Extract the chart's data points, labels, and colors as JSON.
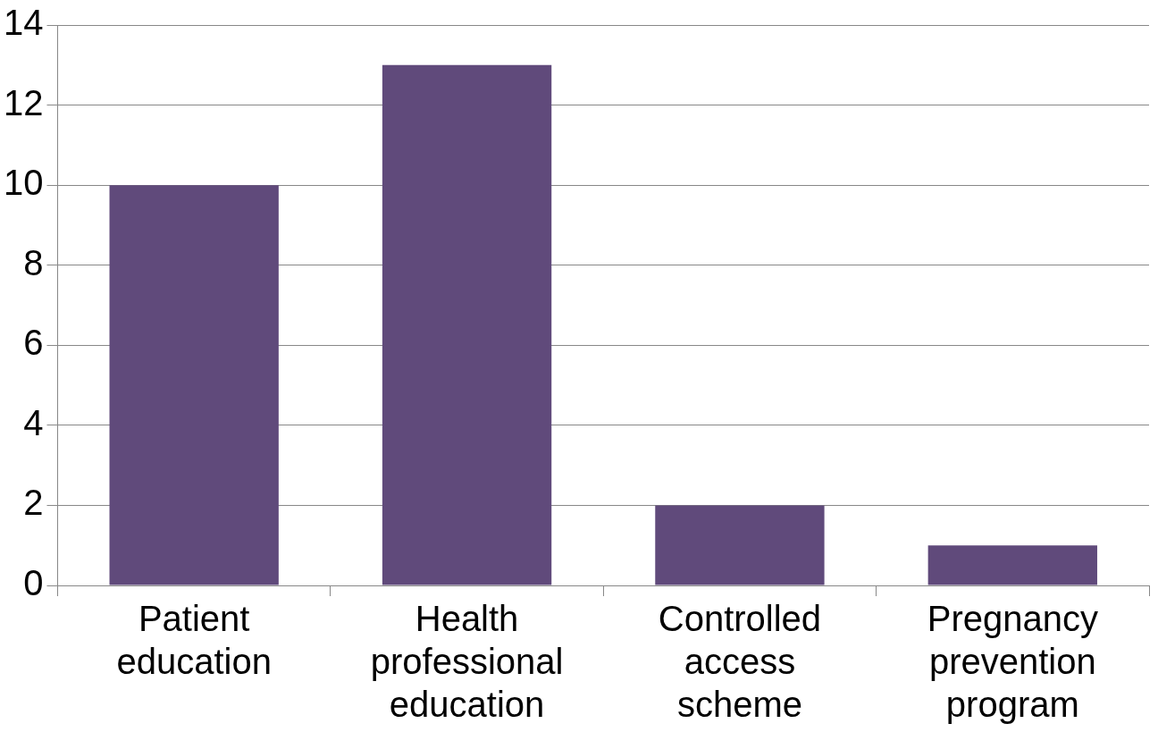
{
  "chart_data": {
    "type": "bar",
    "categories": [
      "Patient education",
      "Health professional education",
      "Controlled access scheme",
      "Pregnancy prevention program"
    ],
    "values": [
      10,
      13,
      2,
      1
    ],
    "color": "#604a7b",
    "ylim": [
      0,
      14
    ],
    "yticks": [
      0,
      2,
      4,
      6,
      8,
      10,
      12,
      14
    ],
    "grid": "y",
    "legend": false
  }
}
